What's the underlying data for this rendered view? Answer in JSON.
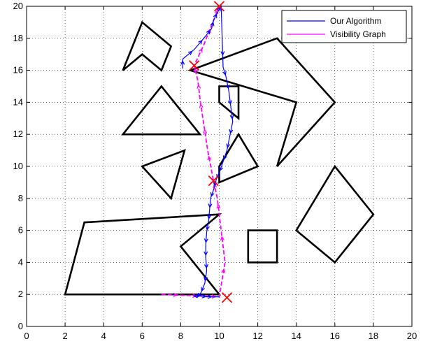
{
  "chart_data": {
    "type": "line",
    "title": "",
    "xlabel": "",
    "ylabel": "",
    "xlim": [
      0,
      20
    ],
    "ylim": [
      0,
      20
    ],
    "grid": true,
    "legend_location": "top-right",
    "xticks": [
      0,
      2,
      4,
      6,
      8,
      10,
      12,
      14,
      16,
      18,
      20
    ],
    "yticks": [
      0,
      2,
      4,
      6,
      8,
      10,
      12,
      14,
      16,
      18,
      20
    ],
    "obstacles": [
      {
        "name": "zigzag",
        "points": [
          [
            6,
            19
          ],
          [
            7.5,
            17.5
          ],
          [
            7,
            16
          ],
          [
            6,
            17
          ],
          [
            5,
            16
          ]
        ]
      },
      {
        "name": "big-quad",
        "points": [
          [
            8.5,
            16
          ],
          [
            13,
            18
          ],
          [
            16,
            14
          ],
          [
            13,
            10
          ],
          [
            14,
            14
          ]
        ]
      },
      {
        "name": "small-square",
        "points": [
          [
            10,
            15
          ],
          [
            11,
            15
          ],
          [
            11,
            13
          ],
          [
            10,
            14
          ]
        ]
      },
      {
        "name": "triangle-upper",
        "points": [
          [
            5,
            12
          ],
          [
            9,
            12
          ],
          [
            7,
            15
          ]
        ]
      },
      {
        "name": "diamond-mid",
        "points": [
          [
            11,
            12
          ],
          [
            12,
            10
          ],
          [
            10,
            9
          ],
          [
            10,
            10
          ]
        ]
      },
      {
        "name": "triangle-small",
        "points": [
          [
            6,
            10
          ],
          [
            8.2,
            11
          ],
          [
            7.5,
            8
          ]
        ]
      },
      {
        "name": "large-left",
        "points": [
          [
            2,
            2
          ],
          [
            10,
            2
          ],
          [
            8,
            5
          ],
          [
            10,
            7
          ],
          [
            3,
            6.5
          ]
        ]
      },
      {
        "name": "square-right",
        "points": [
          [
            11.5,
            6
          ],
          [
            13,
            6
          ],
          [
            13,
            4
          ],
          [
            11.5,
            4
          ]
        ]
      },
      {
        "name": "diamond-right",
        "points": [
          [
            14,
            6
          ],
          [
            16,
            4
          ],
          [
            18,
            7
          ],
          [
            16,
            10
          ]
        ]
      }
    ],
    "series": [
      {
        "name": "Our Algorithm",
        "color": "#0000ff",
        "x": [
          8.1,
          8.1,
          8.7,
          9.2,
          9.6,
          9.7,
          9.9,
          10.1,
          10.2,
          10.35,
          10.5,
          10.6,
          10.7,
          10.55,
          10.4,
          10.2,
          10.0,
          9.85,
          9.75,
          9.55,
          9.5,
          9.45,
          9.35,
          9.3,
          9.3,
          9.35,
          9.25,
          9.05,
          8.85,
          8.7,
          8.75,
          9.05,
          9.35,
          9.65,
          9.85,
          10.0
        ],
        "y": [
          16.1,
          16.7,
          17.3,
          18.0,
          18.6,
          19.1,
          19.6,
          20.0,
          16.2,
          15.6,
          14.7,
          13.7,
          12.8,
          11.9,
          11.0,
          10.3,
          9.6,
          9.2,
          8.7,
          8.0,
          7.3,
          6.6,
          5.9,
          5.1,
          4.3,
          3.5,
          2.7,
          2.1,
          1.8,
          1.9,
          1.95,
          1.9,
          1.85,
          1.85,
          1.85,
          1.85
        ]
      },
      {
        "name": "Visibility Graph",
        "color": "#ff00ff",
        "x": [
          7.0,
          8.0,
          9.0,
          10.0,
          10.3,
          10.1,
          9.9,
          9.7,
          9.4,
          9.2,
          9.0,
          8.9,
          8.7,
          9.2,
          9.6,
          10.0
        ],
        "y": [
          2.0,
          1.95,
          1.9,
          1.85,
          4.0,
          6.0,
          8.0,
          9.1,
          11.0,
          12.6,
          14.2,
          15.3,
          16.3,
          17.6,
          18.8,
          20.0
        ]
      }
    ],
    "markers": [
      {
        "label": "x",
        "x": 10.0,
        "y": 20.0
      },
      {
        "label": "x",
        "x": 8.7,
        "y": 16.3
      },
      {
        "label": "x",
        "x": 9.7,
        "y": 9.1
      },
      {
        "label": "x",
        "x": 10.4,
        "y": 1.8
      }
    ]
  }
}
